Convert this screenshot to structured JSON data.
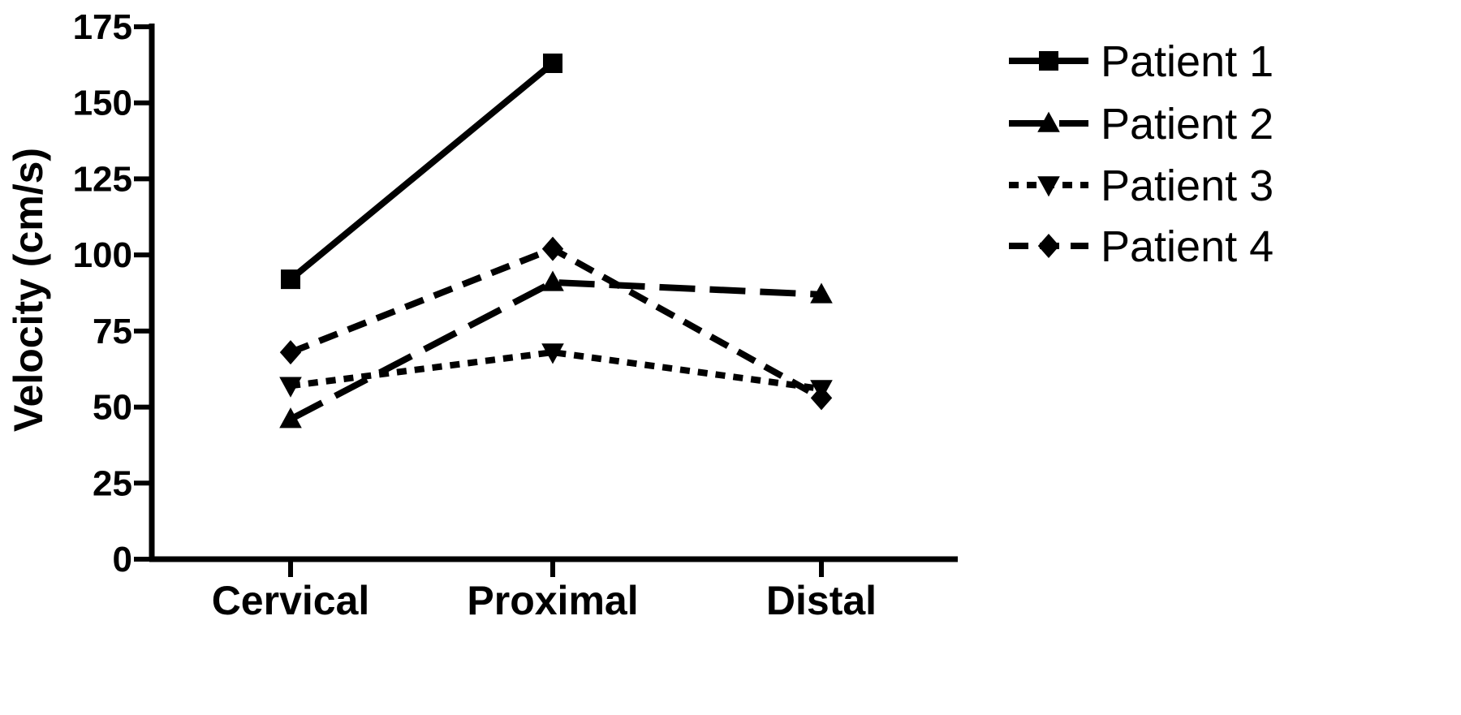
{
  "chart_data": {
    "type": "line",
    "title": "",
    "xlabel": "",
    "ylabel": "Velocity (cm/s)",
    "categories": [
      "Cervical",
      "Proximal",
      "Distal"
    ],
    "ylim": [
      0,
      175
    ],
    "yticks": [
      0,
      25,
      50,
      75,
      100,
      125,
      150,
      175
    ],
    "grid": false,
    "legend_position": "right",
    "series": [
      {
        "name": "Patient 1",
        "values": [
          92,
          163,
          null
        ],
        "line_style": "solid",
        "marker": "square"
      },
      {
        "name": "Patient 2",
        "values": [
          46,
          91,
          87
        ],
        "line_style": "long-dash",
        "marker": "triangle-up"
      },
      {
        "name": "Patient 3",
        "values": [
          57,
          68,
          56
        ],
        "line_style": "dotted",
        "marker": "triangle-down"
      },
      {
        "name": "Patient 4",
        "values": [
          68,
          102,
          53
        ],
        "line_style": "dash-dot",
        "marker": "diamond"
      }
    ],
    "colors": {
      "line": "#000000",
      "background": "#ffffff"
    }
  }
}
